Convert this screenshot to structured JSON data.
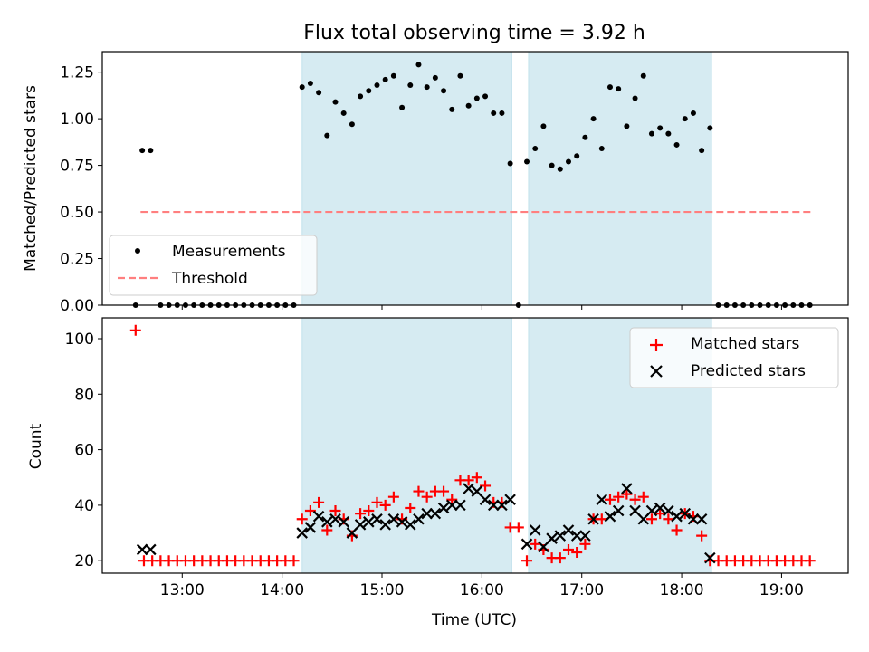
{
  "chart_data": [
    {
      "type": "scatter",
      "title": "Flux total observing time = 3.92 h",
      "xlabel": "",
      "ylabel": "Matched/Predicted stars",
      "ylim": [
        0,
        1.36
      ],
      "yticks": [
        "0.00",
        "0.25",
        "0.50",
        "0.75",
        "1.00",
        "1.25"
      ],
      "shaded_intervals": [
        [
          "14:12",
          "16:18"
        ],
        [
          "16:28",
          "18:18"
        ]
      ],
      "legend": {
        "placement": "bottom-left",
        "entries": [
          "Measurements",
          "Threshold"
        ]
      },
      "threshold": {
        "name": "Threshold",
        "value": 0.5,
        "x_start": "12:35",
        "x_end": "19:18",
        "color": "#ff7f7f"
      },
      "series": [
        {
          "name": "Measurements",
          "color": "#000000",
          "points": [
            [
              "12:32",
              0
            ],
            [
              "12:36",
              0.83
            ],
            [
              "12:41",
              0.83
            ],
            [
              "12:47",
              0
            ],
            [
              "12:52",
              0
            ],
            [
              "12:57",
              0
            ],
            [
              "13:02",
              0
            ],
            [
              "13:07",
              0
            ],
            [
              "13:12",
              0
            ],
            [
              "13:17",
              0
            ],
            [
              "13:22",
              0
            ],
            [
              "13:27",
              0
            ],
            [
              "13:32",
              0
            ],
            [
              "13:37",
              0
            ],
            [
              "13:42",
              0
            ],
            [
              "13:47",
              0
            ],
            [
              "13:52",
              0
            ],
            [
              "13:57",
              0
            ],
            [
              "14:02",
              0
            ],
            [
              "14:07",
              0
            ],
            [
              "14:12",
              1.17
            ],
            [
              "14:17",
              1.19
            ],
            [
              "14:22",
              1.14
            ],
            [
              "14:27",
              0.91
            ],
            [
              "14:32",
              1.09
            ],
            [
              "14:37",
              1.03
            ],
            [
              "14:42",
              0.97
            ],
            [
              "14:47",
              1.12
            ],
            [
              "14:52",
              1.15
            ],
            [
              "14:57",
              1.18
            ],
            [
              "15:02",
              1.21
            ],
            [
              "15:07",
              1.23
            ],
            [
              "15:12",
              1.06
            ],
            [
              "15:17",
              1.18
            ],
            [
              "15:22",
              1.29
            ],
            [
              "15:27",
              1.17
            ],
            [
              "15:32",
              1.22
            ],
            [
              "15:37",
              1.15
            ],
            [
              "15:42",
              1.05
            ],
            [
              "15:47",
              1.23
            ],
            [
              "15:52",
              1.07
            ],
            [
              "15:57",
              1.11
            ],
            [
              "16:02",
              1.12
            ],
            [
              "16:07",
              1.03
            ],
            [
              "16:12",
              1.03
            ],
            [
              "16:17",
              0.76
            ],
            [
              "16:22",
              0
            ],
            [
              "16:27",
              0.77
            ],
            [
              "16:32",
              0.84
            ],
            [
              "16:37",
              0.96
            ],
            [
              "16:42",
              0.75
            ],
            [
              "16:47",
              0.73
            ],
            [
              "16:52",
              0.77
            ],
            [
              "16:57",
              0.8
            ],
            [
              "17:02",
              0.9
            ],
            [
              "17:07",
              1.0
            ],
            [
              "17:12",
              0.84
            ],
            [
              "17:17",
              1.17
            ],
            [
              "17:22",
              1.16
            ],
            [
              "17:27",
              0.96
            ],
            [
              "17:32",
              1.11
            ],
            [
              "17:37",
              1.23
            ],
            [
              "17:42",
              0.92
            ],
            [
              "17:47",
              0.95
            ],
            [
              "17:52",
              0.92
            ],
            [
              "17:57",
              0.86
            ],
            [
              "18:02",
              1.0
            ],
            [
              "18:07",
              1.03
            ],
            [
              "18:12",
              0.83
            ],
            [
              "18:17",
              0.95
            ],
            [
              "18:22",
              0
            ],
            [
              "18:27",
              0
            ],
            [
              "18:32",
              0
            ],
            [
              "18:37",
              0
            ],
            [
              "18:42",
              0
            ],
            [
              "18:47",
              0
            ],
            [
              "18:52",
              0
            ],
            [
              "18:57",
              0
            ],
            [
              "19:02",
              0
            ],
            [
              "19:07",
              0
            ],
            [
              "19:12",
              0
            ],
            [
              "19:17",
              0
            ]
          ]
        }
      ]
    },
    {
      "type": "scatter",
      "title": "",
      "xlabel": "Time (UTC)",
      "ylabel": "Count",
      "ylim": [
        15.5,
        107.5
      ],
      "yticks": [
        "20",
        "40",
        "60",
        "80",
        "100"
      ],
      "xticks": [
        "13:00",
        "14:00",
        "15:00",
        "16:00",
        "17:00",
        "18:00",
        "19:00"
      ],
      "xlim": [
        "12:12",
        "19:40"
      ],
      "shaded_intervals": [
        [
          "14:12",
          "16:18"
        ],
        [
          "16:28",
          "18:18"
        ]
      ],
      "legend": {
        "placement": "top-right",
        "entries": [
          "Matched stars",
          "Predicted stars"
        ]
      },
      "series": [
        {
          "name": "Matched stars",
          "marker": "plus",
          "color": "#ff0000",
          "points": [
            [
              "12:32",
              103
            ],
            [
              "12:37",
              20
            ],
            [
              "12:42",
              20
            ],
            [
              "12:47",
              20
            ],
            [
              "12:52",
              20
            ],
            [
              "12:57",
              20
            ],
            [
              "13:02",
              20
            ],
            [
              "13:07",
              20
            ],
            [
              "13:12",
              20
            ],
            [
              "13:17",
              20
            ],
            [
              "13:22",
              20
            ],
            [
              "13:27",
              20
            ],
            [
              "13:32",
              20
            ],
            [
              "13:37",
              20
            ],
            [
              "13:42",
              20
            ],
            [
              "13:47",
              20
            ],
            [
              "13:52",
              20
            ],
            [
              "13:57",
              20
            ],
            [
              "14:02",
              20
            ],
            [
              "14:07",
              20
            ],
            [
              "14:12",
              35
            ],
            [
              "14:17",
              38
            ],
            [
              "14:22",
              41
            ],
            [
              "14:27",
              31
            ],
            [
              "14:32",
              38
            ],
            [
              "14:37",
              35
            ],
            [
              "14:42",
              29
            ],
            [
              "14:47",
              37
            ],
            [
              "14:52",
              38
            ],
            [
              "14:57",
              41
            ],
            [
              "15:02",
              40
            ],
            [
              "15:07",
              43
            ],
            [
              "15:12",
              35
            ],
            [
              "15:17",
              39
            ],
            [
              "15:22",
              45
            ],
            [
              "15:27",
              43
            ],
            [
              "15:32",
              45
            ],
            [
              "15:37",
              45
            ],
            [
              "15:42",
              42
            ],
            [
              "15:47",
              49
            ],
            [
              "15:52",
              49
            ],
            [
              "15:57",
              50
            ],
            [
              "16:02",
              47
            ],
            [
              "16:07",
              41
            ],
            [
              "16:12",
              41
            ],
            [
              "16:17",
              32
            ],
            [
              "16:22",
              32
            ],
            [
              "16:27",
              20
            ],
            [
              "16:32",
              26
            ],
            [
              "16:37",
              24
            ],
            [
              "16:42",
              21
            ],
            [
              "16:47",
              21
            ],
            [
              "16:52",
              24
            ],
            [
              "16:57",
              23
            ],
            [
              "17:02",
              26
            ],
            [
              "17:07",
              35
            ],
            [
              "17:12",
              35
            ],
            [
              "17:17",
              42
            ],
            [
              "17:22",
              43
            ],
            [
              "17:27",
              44
            ],
            [
              "17:32",
              42
            ],
            [
              "17:37",
              43
            ],
            [
              "17:42",
              35
            ],
            [
              "17:47",
              37
            ],
            [
              "17:52",
              35
            ],
            [
              "17:57",
              31
            ],
            [
              "18:02",
              37
            ],
            [
              "18:07",
              36
            ],
            [
              "18:12",
              29
            ],
            [
              "18:17",
              20
            ],
            [
              "18:22",
              20
            ],
            [
              "18:27",
              20
            ],
            [
              "18:32",
              20
            ],
            [
              "18:37",
              20
            ],
            [
              "18:42",
              20
            ],
            [
              "18:47",
              20
            ],
            [
              "18:52",
              20
            ],
            [
              "18:57",
              20
            ],
            [
              "19:02",
              20
            ],
            [
              "19:07",
              20
            ],
            [
              "19:12",
              20
            ],
            [
              "19:17",
              20
            ]
          ]
        },
        {
          "name": "Predicted stars",
          "marker": "x",
          "color": "#000000",
          "points": [
            [
              "12:36",
              24
            ],
            [
              "12:41",
              24
            ],
            [
              "14:12",
              30
            ],
            [
              "14:17",
              32
            ],
            [
              "14:22",
              36
            ],
            [
              "14:27",
              34
            ],
            [
              "14:32",
              35
            ],
            [
              "14:37",
              34
            ],
            [
              "14:42",
              30
            ],
            [
              "14:47",
              33
            ],
            [
              "14:52",
              34
            ],
            [
              "14:57",
              35
            ],
            [
              "15:02",
              33
            ],
            [
              "15:07",
              35
            ],
            [
              "15:12",
              34
            ],
            [
              "15:17",
              33
            ],
            [
              "15:22",
              35
            ],
            [
              "15:27",
              37
            ],
            [
              "15:32",
              37
            ],
            [
              "15:37",
              39
            ],
            [
              "15:42",
              40
            ],
            [
              "15:47",
              40
            ],
            [
              "15:52",
              46
            ],
            [
              "15:57",
              45
            ],
            [
              "16:02",
              42
            ],
            [
              "16:07",
              40
            ],
            [
              "16:12",
              40
            ],
            [
              "16:17",
              42
            ],
            [
              "16:27",
              26
            ],
            [
              "16:32",
              31
            ],
            [
              "16:37",
              25
            ],
            [
              "16:42",
              28
            ],
            [
              "16:47",
              29
            ],
            [
              "16:52",
              31
            ],
            [
              "16:57",
              29
            ],
            [
              "17:02",
              29
            ],
            [
              "17:07",
              35
            ],
            [
              "17:12",
              42
            ],
            [
              "17:17",
              36
            ],
            [
              "17:22",
              38
            ],
            [
              "17:27",
              46
            ],
            [
              "17:32",
              38
            ],
            [
              "17:37",
              35
            ],
            [
              "17:42",
              38
            ],
            [
              "17:47",
              39
            ],
            [
              "17:52",
              38
            ],
            [
              "17:57",
              36
            ],
            [
              "18:02",
              37
            ],
            [
              "18:07",
              35
            ],
            [
              "18:12",
              35
            ],
            [
              "18:17",
              21
            ]
          ]
        }
      ]
    }
  ],
  "colors": {
    "shade": "#add8e6",
    "threshold": "#ff7f7f",
    "matched": "#ff0000",
    "predicted": "#000000",
    "measurement": "#000000"
  }
}
